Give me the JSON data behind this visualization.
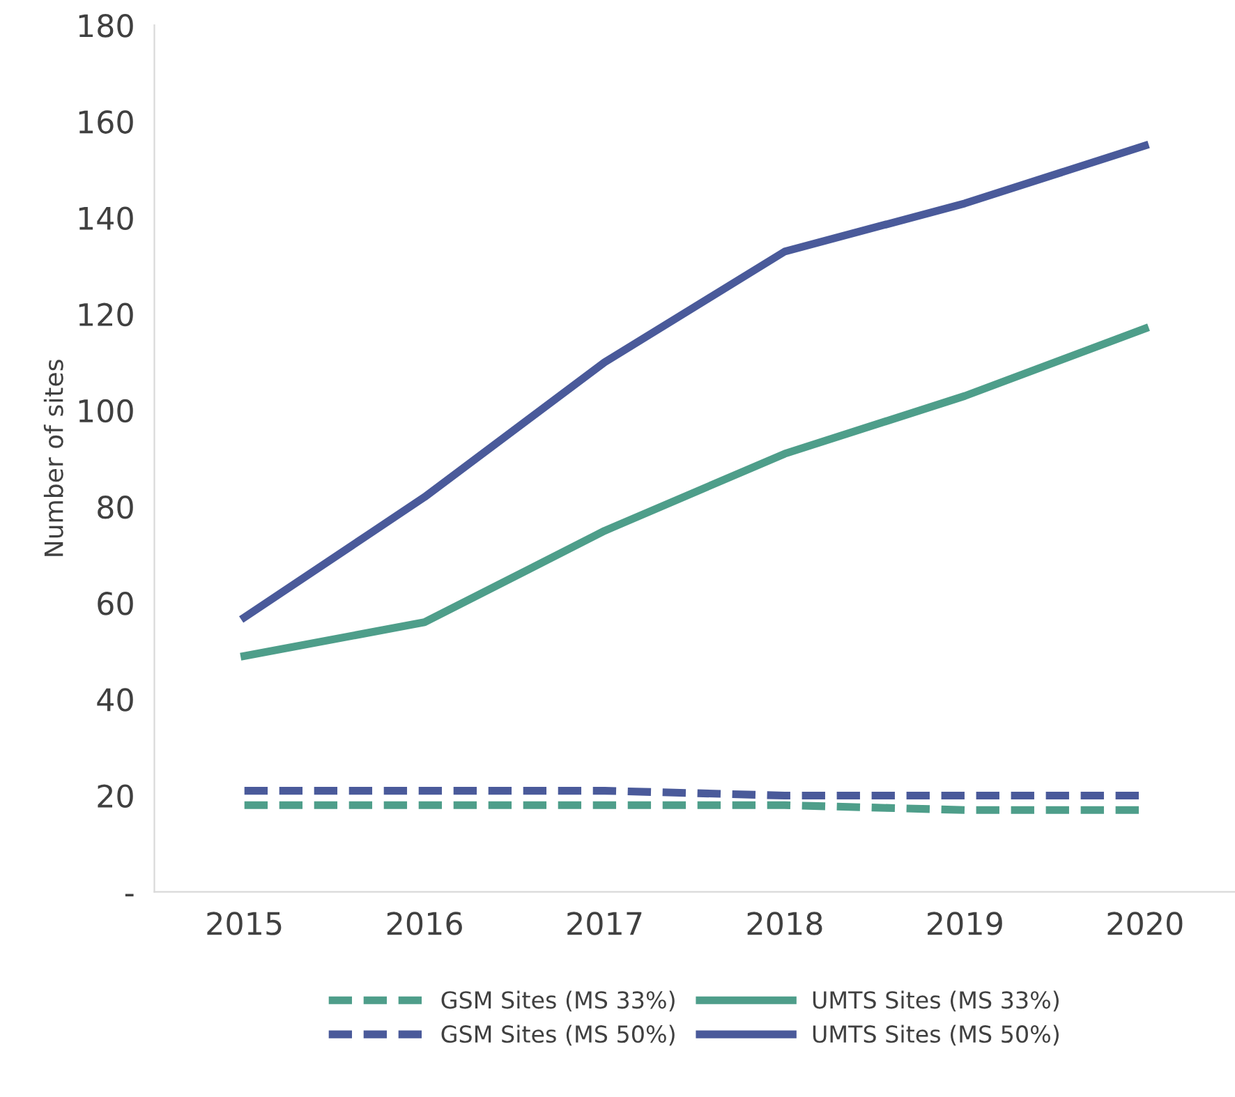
{
  "chart_data": {
    "type": "line",
    "ylabel": "Number of sites",
    "categories": [
      "2015",
      "2016",
      "2017",
      "2018",
      "2019",
      "2020"
    ],
    "series": [
      {
        "name": "GSM Sites (MS 33%)",
        "color": "#4e9e8a",
        "line_style": "dashed",
        "values": [
          18,
          18,
          18,
          18,
          17,
          17
        ]
      },
      {
        "name": "UMTS Sites (MS 33%)",
        "color": "#4e9e8a",
        "line_style": "solid",
        "values": [
          49,
          56,
          75,
          91,
          103,
          117
        ]
      },
      {
        "name": "GSM Sites (MS 50%)",
        "color": "#4a5a9a",
        "line_style": "dashed",
        "values": [
          21,
          21,
          21,
          20,
          20,
          20
        ]
      },
      {
        "name": "UMTS Sites (MS 50%)",
        "color": "#4a5a9a",
        "line_style": "solid",
        "values": [
          57,
          82,
          110,
          133,
          143,
          155
        ]
      }
    ],
    "ylim": [
      0,
      180
    ],
    "yticks": [
      {
        "value": 0,
        "label": "-"
      },
      20,
      40,
      60,
      80,
      100,
      120,
      140,
      160,
      180
    ],
    "grid": false,
    "legend": "bottom",
    "marker": "none"
  }
}
